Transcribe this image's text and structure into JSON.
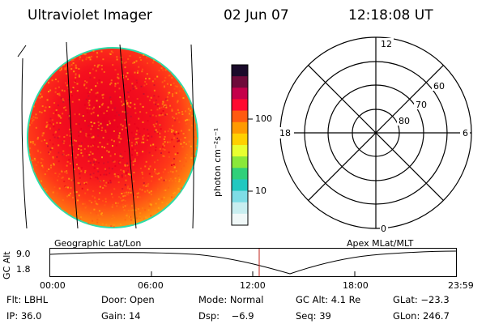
{
  "header": {
    "title": "Ultraviolet Imager",
    "date": "02 Jun 07",
    "time": "12:18:08 UT"
  },
  "colorbar": {
    "unit_label": "photon cm⁻²s⁻¹",
    "ticks": [
      {
        "label": "100",
        "value": 100
      },
      {
        "label": "10",
        "value": 10
      }
    ],
    "colors": [
      "#1a0a2a",
      "#6e0a3a",
      "#c4004a",
      "#ff0a30",
      "#ff5a10",
      "#ff9a00",
      "#ffd000",
      "#e8ff30",
      "#8ae83a",
      "#30d07a",
      "#22c8c0",
      "#7edde6",
      "#c8eef0",
      "#f0f8f8"
    ]
  },
  "image_panel": {
    "label": "Geographic Lat/Lon"
  },
  "polar_plot": {
    "label": "Apex MLat/MLT",
    "mlt_labels": {
      "top": "12",
      "right": "6",
      "bottom": "0",
      "left": "18"
    },
    "lat_labels": [
      "60",
      "70",
      "80"
    ]
  },
  "altitude_plot": {
    "axis_label": "GC Alt",
    "y_ticks": [
      "9.0",
      "1.8"
    ],
    "x_ticks": [
      "00:00",
      "06:00",
      "12:00",
      "18:00",
      "23:59"
    ]
  },
  "footer": {
    "rows": [
      [
        "Flt: LBHL",
        "Door: Open",
        "Mode: Normal",
        "GC Alt: 4.1 Re",
        "GLat: −23.3"
      ],
      [
        "IP: 36.0",
        "Gain: 14",
        "Dsp:    −6.9",
        "Seq: 39",
        "GLon: 246.7"
      ]
    ]
  },
  "colors": {
    "disk_base": "#ff3a1a",
    "disk_core": "#ee0a1e",
    "disk_edge": "#ffa510",
    "limb": "#1fd4a0",
    "marker": "#c0201a"
  }
}
